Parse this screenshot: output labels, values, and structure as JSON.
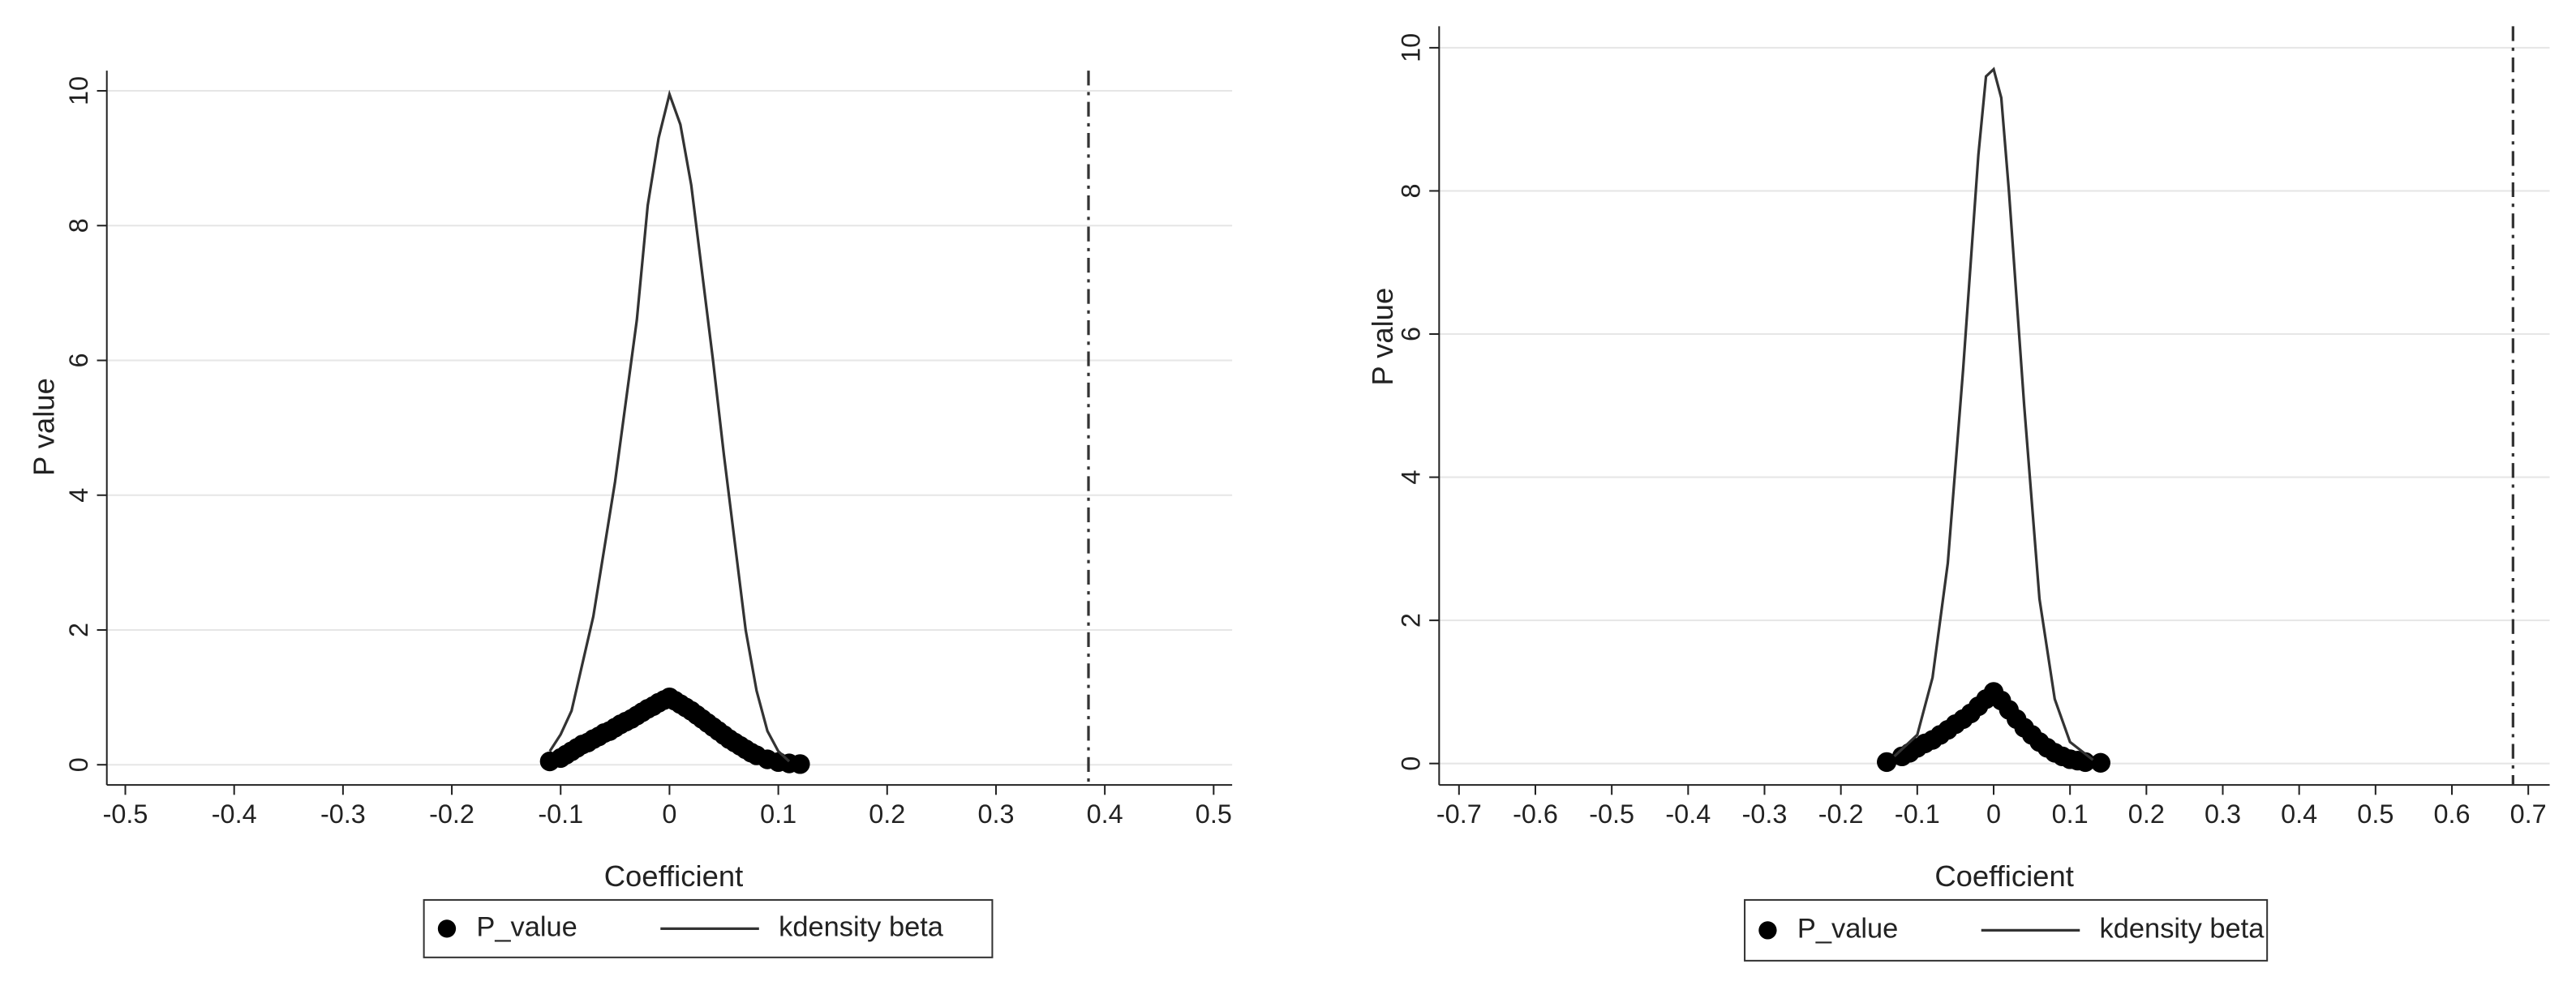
{
  "chart_data": [
    {
      "type": "scatter-kdensity",
      "x_label": "Coefficient",
      "y_label": "P value",
      "xlim": [
        -0.517,
        0.517
      ],
      "ylim": [
        -0.3,
        10.3
      ],
      "xticks": [
        -0.5,
        -0.4,
        -0.3,
        -0.2,
        -0.1,
        0,
        0.1,
        0.2,
        0.3,
        0.4,
        0.5
      ],
      "yticks": [
        0,
        2,
        4,
        6,
        8,
        10
      ],
      "grid": true,
      "ref_line_x": 0.385,
      "series": [
        {
          "name": "P_value",
          "type": "scatter",
          "color": "#000000",
          "x": [
            -0.11,
            -0.1,
            -0.095,
            -0.09,
            -0.085,
            -0.08,
            -0.075,
            -0.07,
            -0.065,
            -0.06,
            -0.055,
            -0.05,
            -0.045,
            -0.04,
            -0.035,
            -0.03,
            -0.025,
            -0.02,
            -0.015,
            -0.01,
            -0.005,
            0,
            0.005,
            0.01,
            0.015,
            0.02,
            0.025,
            0.03,
            0.035,
            0.04,
            0.045,
            0.05,
            0.055,
            0.06,
            0.065,
            0.07,
            0.075,
            0.08,
            0.09,
            0.1,
            0.11,
            0.12
          ],
          "values": [
            0.05,
            0.1,
            0.15,
            0.2,
            0.25,
            0.3,
            0.33,
            0.38,
            0.42,
            0.47,
            0.5,
            0.55,
            0.6,
            0.64,
            0.68,
            0.73,
            0.78,
            0.83,
            0.87,
            0.92,
            0.96,
            1.0,
            0.95,
            0.9,
            0.85,
            0.8,
            0.74,
            0.68,
            0.62,
            0.56,
            0.5,
            0.44,
            0.38,
            0.33,
            0.28,
            0.23,
            0.18,
            0.14,
            0.08,
            0.04,
            0.02,
            0.01
          ]
        },
        {
          "name": "kdensity beta",
          "type": "line",
          "color": "#333333",
          "x": [
            -0.11,
            -0.1,
            -0.09,
            -0.07,
            -0.05,
            -0.03,
            -0.02,
            -0.01,
            0,
            0.01,
            0.02,
            0.03,
            0.04,
            0.05,
            0.06,
            0.07,
            0.08,
            0.09,
            0.1,
            0.11
          ],
          "values": [
            0.2,
            0.45,
            0.8,
            2.2,
            4.2,
            6.6,
            8.3,
            9.3,
            9.95,
            9.5,
            8.6,
            7.3,
            6.0,
            4.6,
            3.3,
            2.0,
            1.1,
            0.5,
            0.2,
            0.05
          ]
        }
      ]
    },
    {
      "type": "scatter-kdensity",
      "x_label": "Coefficient",
      "y_label": "P value",
      "xlim": [
        -0.726,
        0.728
      ],
      "ylim": [
        -0.3,
        10.3
      ],
      "xticks": [
        -0.7,
        -0.6,
        -0.5,
        -0.4,
        -0.3,
        -0.2,
        -0.1,
        0,
        0.1,
        0.2,
        0.3,
        0.4,
        0.5,
        0.6,
        0.7
      ],
      "yticks": [
        0,
        2,
        4,
        6,
        8,
        10
      ],
      "grid": true,
      "ref_line_x": 0.68,
      "series": [
        {
          "name": "P_value",
          "type": "scatter",
          "color": "#000000",
          "x": [
            -0.14,
            -0.12,
            -0.11,
            -0.1,
            -0.09,
            -0.08,
            -0.07,
            -0.06,
            -0.05,
            -0.04,
            -0.03,
            -0.02,
            -0.01,
            0,
            0.01,
            0.02,
            0.03,
            0.04,
            0.05,
            0.06,
            0.07,
            0.08,
            0.09,
            0.1,
            0.11,
            0.12,
            0.14
          ],
          "values": [
            0.02,
            0.1,
            0.15,
            0.22,
            0.28,
            0.33,
            0.4,
            0.47,
            0.55,
            0.62,
            0.7,
            0.8,
            0.9,
            1.0,
            0.88,
            0.75,
            0.62,
            0.5,
            0.4,
            0.3,
            0.22,
            0.15,
            0.1,
            0.06,
            0.04,
            0.02,
            0.01
          ]
        },
        {
          "name": "kdensity beta",
          "type": "line",
          "color": "#333333",
          "x": [
            -0.13,
            -0.1,
            -0.08,
            -0.06,
            -0.04,
            -0.02,
            -0.01,
            0,
            0.01,
            0.02,
            0.04,
            0.06,
            0.08,
            0.1,
            0.13
          ],
          "values": [
            0.1,
            0.4,
            1.2,
            2.8,
            5.5,
            8.5,
            9.6,
            9.7,
            9.3,
            8.0,
            5.0,
            2.3,
            0.9,
            0.3,
            0.05
          ]
        }
      ]
    }
  ]
}
